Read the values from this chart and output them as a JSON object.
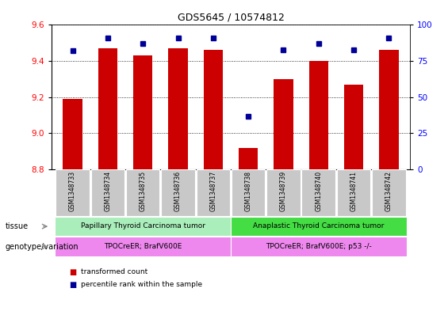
{
  "title": "GDS5645 / 10574812",
  "samples": [
    "GSM1348733",
    "GSM1348734",
    "GSM1348735",
    "GSM1348736",
    "GSM1348737",
    "GSM1348738",
    "GSM1348739",
    "GSM1348740",
    "GSM1348741",
    "GSM1348742"
  ],
  "transformed_count": [
    9.19,
    9.47,
    9.43,
    9.47,
    9.46,
    8.92,
    9.3,
    9.4,
    9.27,
    9.46
  ],
  "percentile_rank": [
    82,
    91,
    87,
    91,
    91,
    37,
    83,
    87,
    83,
    91
  ],
  "ylim_left": [
    8.8,
    9.6
  ],
  "ylim_right": [
    0,
    100
  ],
  "yticks_left": [
    8.8,
    9.0,
    9.2,
    9.4,
    9.6
  ],
  "yticks_right": [
    0,
    25,
    50,
    75,
    100
  ],
  "bar_color": "#cc0000",
  "dot_color": "#000099",
  "bar_width": 0.55,
  "tissue_labels": [
    "Papillary Thyroid Carcinoma tumor",
    "Anaplastic Thyroid Carcinoma tumor"
  ],
  "tissue_color_left": "#aaeebb",
  "tissue_color_right": "#44dd44",
  "tissue_split": 5,
  "genotype_labels": [
    "TPOCreER; BrafV600E",
    "TPOCreER; BrafV600E; p53 -/-"
  ],
  "genotype_color": "#ee88ee",
  "row_label_tissue": "tissue",
  "row_label_genotype": "genotype/variation",
  "legend_bar_label": "transformed count",
  "legend_dot_label": "percentile rank within the sample",
  "tick_bg_color": "#c8c8c8",
  "fig_width": 5.65,
  "fig_height": 3.93,
  "dpi": 100
}
